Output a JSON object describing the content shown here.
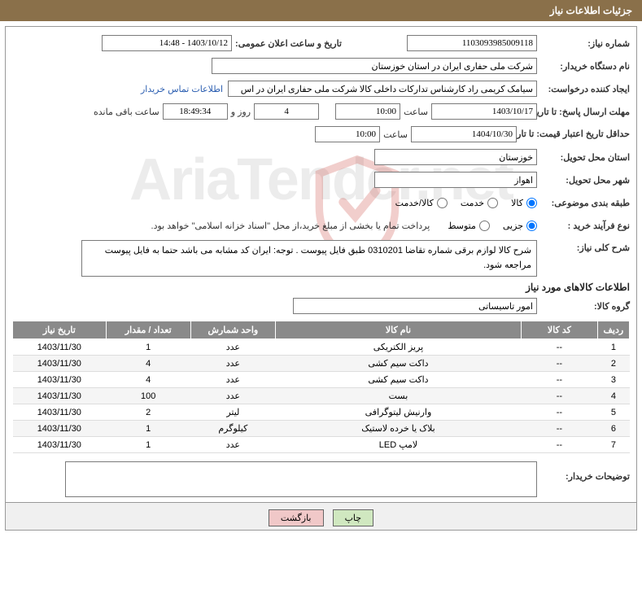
{
  "header": {
    "title": "جزئیات اطلاعات نیاز"
  },
  "form": {
    "reqNum_label": "شماره نیاز:",
    "reqNum_value": "1103093985009118",
    "announceDate_label": "تاریخ و ساعت اعلان عمومی:",
    "announceDate_value": "1403/10/12 - 14:48",
    "buyerOrg_label": "نام دستگاه خریدار:",
    "buyerOrg_value": "شرکت ملی حفاری ایران در استان خوزستان",
    "requester_label": "ایجاد کننده درخواست:",
    "requester_value": "سیامک کریمی راد کارشناس تدارکات داخلی کالا شرکت ملی حفاری ایران در اس",
    "contact_link": "اطلاعات تماس خریدار",
    "deadline_label": "مهلت ارسال پاسخ: تا تاریخ:",
    "deadline_date": "1403/10/17",
    "hour_label": "ساعت",
    "deadline_time": "10:00",
    "days_remaining": "4",
    "days_label": "روز و",
    "time_remaining": "18:49:34",
    "remaining_label": "ساعت باقی مانده",
    "validity_label": "حداقل تاریخ اعتبار قیمت: تا تاریخ:",
    "validity_date": "1404/10/30",
    "validity_time": "10:00",
    "province_label": "استان محل تحویل:",
    "province_value": "خوزستان",
    "city_label": "شهر محل تحویل:",
    "city_value": "اهواز",
    "category_label": "طبقه بندی موضوعی:",
    "radio_goods": "کالا",
    "radio_service": "خدمت",
    "radio_both": "کالا/خدمت",
    "processType_label": "نوع فرآیند خرید :",
    "radio_minor": "جزیی",
    "radio_medium": "متوسط",
    "payment_note": "پرداخت تمام یا بخشی از مبلغ خرید،از محل \"اسناد خزانه اسلامی\" خواهد بود.",
    "general_label": "شرح کلی نیاز:",
    "general_text": "شرح کالا لوازم برقی شماره تقاضا 0310201 طبق فایل پیوست . توجه: ایران کد مشابه می باشد حتما به فایل پیوست مراجعه شود.",
    "section2_title": "اطلاعات کالاهای مورد نیاز",
    "group_label": "گروه کالا:",
    "group_value": "امور تاسیساتی",
    "buyer_notes_label": "توضیحات خریدار:",
    "buyer_notes_value": ""
  },
  "table": {
    "headers": {
      "row": "ردیف",
      "code": "کد کالا",
      "name": "نام کالا",
      "unit": "واحد شمارش",
      "qty": "تعداد / مقدار",
      "date": "تاریخ نیاز"
    },
    "rows": [
      {
        "n": "1",
        "code": "--",
        "name": "پریز الکتریکی",
        "unit": "عدد",
        "qty": "1",
        "date": "1403/11/30"
      },
      {
        "n": "2",
        "code": "--",
        "name": "داکت سیم کشی",
        "unit": "عدد",
        "qty": "4",
        "date": "1403/11/30"
      },
      {
        "n": "3",
        "code": "--",
        "name": "داکت سیم کشی",
        "unit": "عدد",
        "qty": "4",
        "date": "1403/11/30"
      },
      {
        "n": "4",
        "code": "--",
        "name": "بست",
        "unit": "عدد",
        "qty": "100",
        "date": "1403/11/30"
      },
      {
        "n": "5",
        "code": "--",
        "name": "وارنیش لیتوگرافی",
        "unit": "لیتر",
        "qty": "2",
        "date": "1403/11/30"
      },
      {
        "n": "6",
        "code": "--",
        "name": "بلاک یا خرده لاستیک",
        "unit": "کیلوگرم",
        "qty": "1",
        "date": "1403/11/30"
      },
      {
        "n": "7",
        "code": "--",
        "name": "لامپ LED",
        "unit": "عدد",
        "qty": "1",
        "date": "1403/11/30"
      }
    ]
  },
  "buttons": {
    "print": "چاپ",
    "back": "بازگشت"
  },
  "watermark": "AriaTender.net",
  "colors": {
    "header_bg": "#8a704a",
    "th_bg": "#8a8a8a",
    "link": "#2a5db0",
    "btn_print": "#d0e8c0",
    "btn_back": "#f0c8c8"
  }
}
